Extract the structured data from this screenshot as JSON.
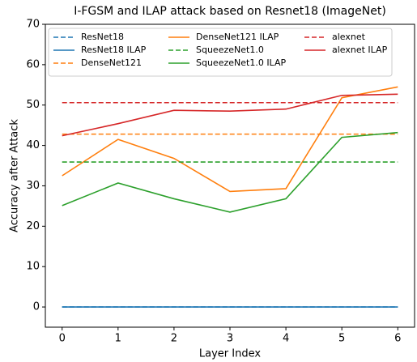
{
  "chart_data": {
    "type": "line",
    "title": "I-FGSM and ILAP attack based on Resnet18 (ImageNet)",
    "xlabel": "Layer Index",
    "ylabel": "Accuracy after Attack",
    "x": [
      0,
      1,
      2,
      3,
      4,
      5,
      6
    ],
    "xlim": [
      -0.3,
      6.3
    ],
    "xticks": [
      0,
      1,
      2,
      3,
      4,
      5,
      6
    ],
    "ylim": [
      -5,
      70
    ],
    "yticks": [
      0,
      10,
      20,
      30,
      40,
      50,
      60,
      70
    ],
    "legend": "upper left",
    "series": [
      {
        "name": "ResNet18",
        "color": "#1f77b4",
        "dashed": true,
        "values": [
          0,
          0,
          0,
          0,
          0,
          0,
          0
        ]
      },
      {
        "name": "ResNet18 ILAP",
        "color": "#1f77b4",
        "dashed": false,
        "values": [
          0,
          0,
          0,
          0,
          0,
          0,
          0
        ]
      },
      {
        "name": "DenseNet121",
        "color": "#ff7f0e",
        "dashed": true,
        "values": [
          42.8,
          42.8,
          42.8,
          42.8,
          42.8,
          42.8,
          42.8
        ]
      },
      {
        "name": "DenseNet121 ILAP",
        "color": "#ff7f0e",
        "dashed": false,
        "values": [
          32.5,
          41.5,
          36.8,
          28.6,
          29.3,
          51.8,
          54.5
        ]
      },
      {
        "name": "SqueezeNet1.0",
        "color": "#2ca02c",
        "dashed": true,
        "values": [
          35.9,
          35.9,
          35.9,
          35.9,
          35.9,
          35.9,
          35.9
        ]
      },
      {
        "name": "SqueezeNet1.0 ILAP",
        "color": "#2ca02c",
        "dashed": false,
        "values": [
          25.1,
          30.7,
          26.8,
          23.5,
          26.8,
          42.0,
          43.2
        ]
      },
      {
        "name": "alexnet",
        "color": "#d62728",
        "dashed": true,
        "values": [
          50.6,
          50.6,
          50.6,
          50.6,
          50.6,
          50.6,
          50.6
        ]
      },
      {
        "name": "alexnet ILAP",
        "color": "#d62728",
        "dashed": false,
        "values": [
          42.4,
          45.4,
          48.7,
          48.5,
          49.0,
          52.4,
          52.7
        ]
      }
    ]
  }
}
